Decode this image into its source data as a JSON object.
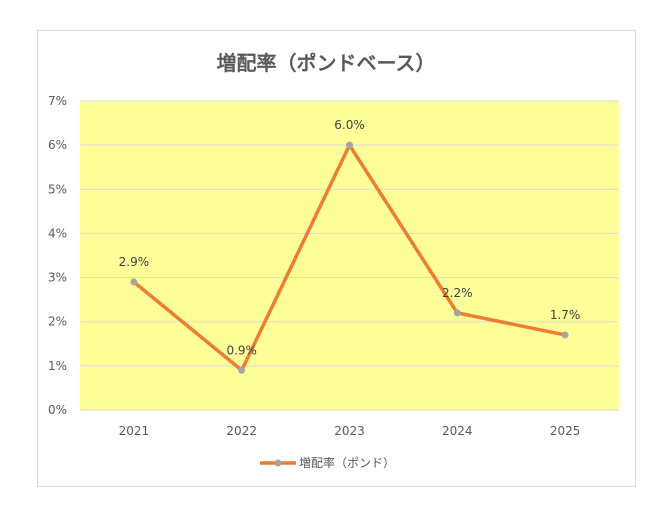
{
  "chart_data": {
    "type": "line",
    "title": "増配率（ポンドベース）",
    "categories": [
      "2021",
      "2022",
      "2023",
      "2024",
      "2025"
    ],
    "series": [
      {
        "name": "増配率（ポンド）",
        "values": [
          2.9,
          0.9,
          6.0,
          2.2,
          1.7
        ],
        "labels": [
          "2.9%",
          "0.9%",
          "6.0%",
          "2.2%",
          "1.7%"
        ]
      }
    ],
    "ylim": [
      0,
      7
    ],
    "yticks": [
      "0%",
      "1%",
      "2%",
      "3%",
      "4%",
      "5%",
      "6%",
      "7%"
    ],
    "grid": true,
    "legend": "bottom",
    "colors": {
      "line": "#ED7D31",
      "marker": "#A5A5A5",
      "plot_background": "#FFFF99",
      "gridline": "#D9D9D9",
      "text": "#595959"
    }
  }
}
